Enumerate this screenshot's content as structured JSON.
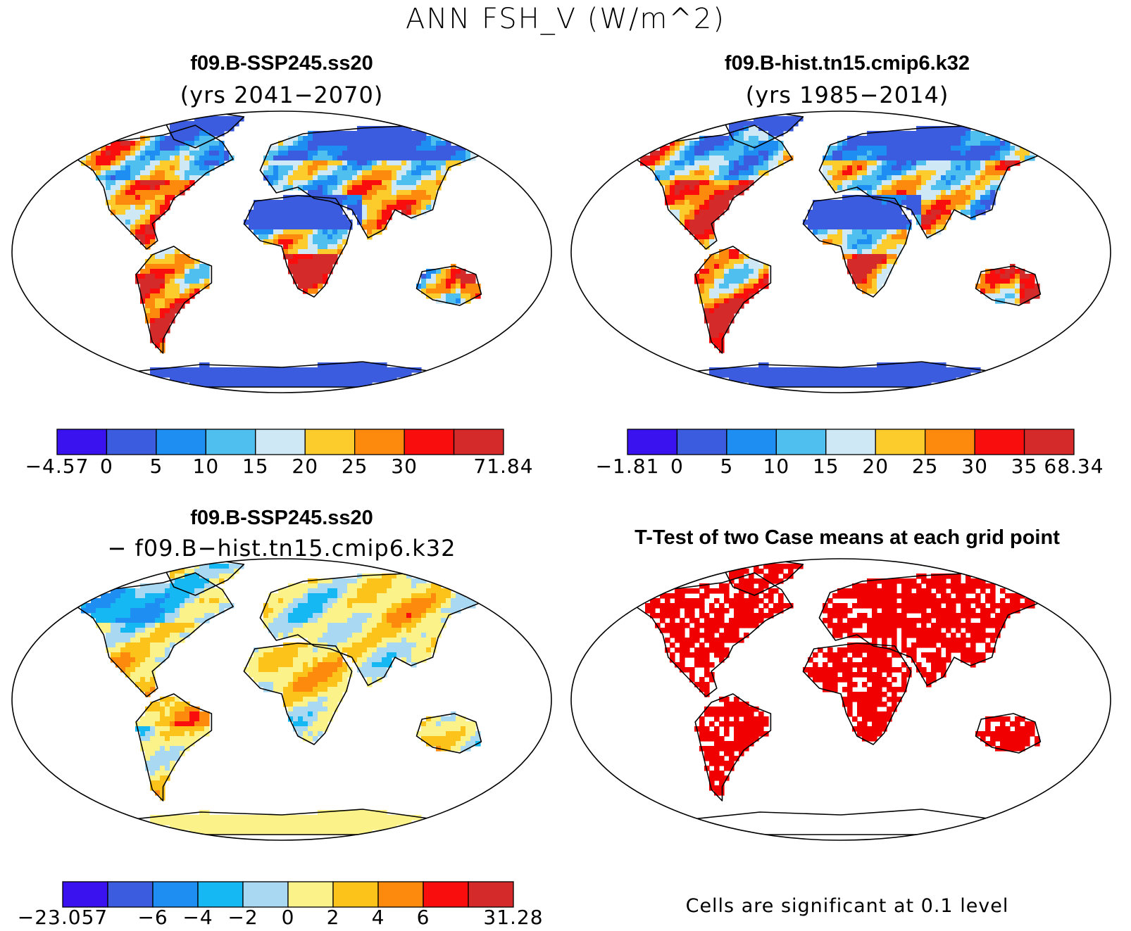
{
  "figure_title": "ANN FSH_V (W/m^2)",
  "panels": {
    "top_left": {
      "title": "f09.B-SSP245.ss20",
      "subtitle": "(yrs 2041−2070)"
    },
    "top_right": {
      "title": "f09.B-hist.tn15.cmip6.k32",
      "subtitle": "(yrs 1985−2014)"
    },
    "bottom_left": {
      "title": "f09.B-SSP245.ss20",
      "subtitle": "− f09.B−hist.tn15.cmip6.k32"
    },
    "bottom_right": {
      "title": "T-Test of two Case means at each grid point",
      "note": "Cells are significant at 0.1 level"
    }
  },
  "chart_data": [
    {
      "type": "heatmap",
      "title": "f09.B-SSP245.ss20",
      "subtitle": "(yrs 2041−2070)",
      "projection": "robinson",
      "variable": "ANN FSH_V",
      "units": "W/m^2",
      "colorbar": {
        "tick_labels": [
          "−4.57",
          "0",
          "5",
          "10",
          "15",
          "20",
          "25",
          "30",
          "",
          "71.84"
        ],
        "boundaries": [
          -4.57,
          0,
          5,
          10,
          15,
          20,
          25,
          30,
          35,
          71.84
        ],
        "colors": [
          "#3a12f0",
          "#3c5ce0",
          "#1f8ef2",
          "#4fbff0",
          "#cfe8f6",
          "#fccc2c",
          "#fd8a0d",
          "#fa0d0d",
          "#d42a2a"
        ]
      }
    },
    {
      "type": "heatmap",
      "title": "f09.B-hist.tn15.cmip6.k32",
      "subtitle": "(yrs 1985−2014)",
      "projection": "robinson",
      "variable": "ANN FSH_V",
      "units": "W/m^2",
      "colorbar": {
        "tick_labels": [
          "−1.81",
          "0",
          "5",
          "10",
          "15",
          "20",
          "25",
          "30",
          "35",
          "68.34"
        ],
        "boundaries": [
          -1.81,
          0,
          5,
          10,
          15,
          20,
          25,
          30,
          35,
          68.34
        ],
        "colors": [
          "#3a12f0",
          "#3c5ce0",
          "#1f8ef2",
          "#4fbff0",
          "#cfe8f6",
          "#fccc2c",
          "#fd8a0d",
          "#fa0d0d",
          "#d42a2a"
        ]
      }
    },
    {
      "type": "heatmap",
      "title": "f09.B-SSP245.ss20",
      "subtitle": "− f09.B−hist.tn15.cmip6.k32",
      "projection": "robinson",
      "variable": "ANN FSH_V difference",
      "units": "W/m^2",
      "colorbar": {
        "tick_labels": [
          "−23.057",
          "",
          "−6",
          "−4",
          "−2",
          "0",
          "2",
          "4",
          "6",
          "",
          "31.28"
        ],
        "boundaries": [
          -23.057,
          -8,
          -6,
          -4,
          -2,
          0,
          2,
          4,
          6,
          8,
          31.28
        ],
        "colors": [
          "#3a12f0",
          "#3c5ce0",
          "#1f8ef2",
          "#15b8f2",
          "#a8d8f2",
          "#fbf38a",
          "#fcc41a",
          "#fd8a0d",
          "#fa0d0d",
          "#d42a2a"
        ]
      }
    },
    {
      "type": "heatmap",
      "title": "T-Test of two Case means at each grid point",
      "projection": "robinson",
      "significance_level": 0.1,
      "note": "Cells are significant at 0.1 level",
      "colors": {
        "significant": "#f00000",
        "not_significant": "#ffffff"
      }
    }
  ]
}
